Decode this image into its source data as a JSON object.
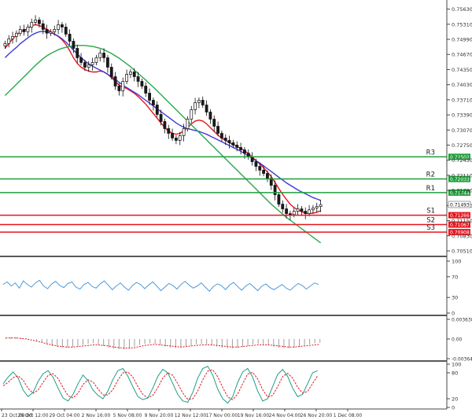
{
  "chart_data": [
    {
      "type": "candlestick",
      "panel": "price",
      "y_axis_ticks": [
        "0.75630",
        "0.75310",
        "0.74990",
        "0.74670",
        "0.74350",
        "0.74030",
        "0.73710",
        "0.73390",
        "0.73070",
        "0.72750",
        "0.72430",
        "0.72110",
        "0.71790",
        "0.71470",
        "0.71150",
        "0.70830",
        "0.70510"
      ],
      "ylim": [
        0.7046,
        0.7569
      ],
      "last_price": "0.71493",
      "close_series": [
        0.749,
        0.75,
        0.7505,
        0.7512,
        0.752,
        0.7515,
        0.7525,
        0.7535,
        0.754,
        0.7532,
        0.752,
        0.7512,
        0.7515,
        0.752,
        0.753,
        0.7525,
        0.751,
        0.7495,
        0.748,
        0.746,
        0.745,
        0.744,
        0.7445,
        0.745,
        0.746,
        0.747,
        0.746,
        0.744,
        0.742,
        0.74,
        0.739,
        0.741,
        0.7425,
        0.743,
        0.742,
        0.741,
        0.74,
        0.7385,
        0.737,
        0.736,
        0.734,
        0.7325,
        0.731,
        0.73,
        0.729,
        0.7285,
        0.7295,
        0.731,
        0.733,
        0.735,
        0.7365,
        0.737,
        0.736,
        0.7345,
        0.733,
        0.7315,
        0.73,
        0.729,
        0.7285,
        0.728,
        0.7275,
        0.727,
        0.7265,
        0.7258,
        0.725,
        0.724,
        0.723,
        0.7222,
        0.7215,
        0.7205,
        0.719,
        0.717,
        0.715,
        0.714,
        0.713,
        0.7128,
        0.7135,
        0.714,
        0.7135,
        0.713,
        0.7138,
        0.7142,
        0.7145,
        0.7149
      ],
      "moving_averages": [
        {
          "color": "#e8141c",
          "values": [
            0.748,
            0.749,
            0.75,
            0.7508,
            0.7515,
            0.7518,
            0.7522,
            0.7528,
            0.753,
            0.7528,
            0.7525,
            0.752,
            0.7515,
            0.751,
            0.7505,
            0.7498,
            0.7488,
            0.7475,
            0.746,
            0.7448,
            0.744,
            0.7435,
            0.7432,
            0.743,
            0.743,
            0.7432,
            0.743,
            0.7425,
            0.7418,
            0.741,
            0.7402,
            0.7398,
            0.7395,
            0.739,
            0.7385,
            0.7378,
            0.737,
            0.7362,
            0.7352,
            0.7342,
            0.7332,
            0.7322,
            0.7312,
            0.7305,
            0.73,
            0.7298,
            0.73,
            0.7305,
            0.7312,
            0.732,
            0.7326,
            0.7328,
            0.7326,
            0.732,
            0.7312,
            0.7304,
            0.7296,
            0.729,
            0.7285,
            0.728,
            0.7276,
            0.7272,
            0.7268,
            0.7263,
            0.7257,
            0.725,
            0.7242,
            0.7235,
            0.7227,
            0.7218,
            0.7208,
            0.7196,
            0.7183,
            0.7171,
            0.716,
            0.715,
            0.7143,
            0.7138,
            0.7134,
            0.7131,
            0.713,
            0.7131,
            0.7133,
            0.7136
          ]
        },
        {
          "color": "#3b3bd6",
          "values": [
            0.746,
            0.7468,
            0.7475,
            0.7482,
            0.749,
            0.7496,
            0.7502,
            0.7508,
            0.7512,
            0.7515,
            0.7516,
            0.7515,
            0.7513,
            0.751,
            0.7506,
            0.75,
            0.7493,
            0.7485,
            0.7476,
            0.7468,
            0.746,
            0.7453,
            0.7447,
            0.7442,
            0.7438,
            0.7434,
            0.743,
            0.7425,
            0.742,
            0.7414,
            0.7408,
            0.7402,
            0.7397,
            0.7392,
            0.7387,
            0.7382,
            0.7376,
            0.737,
            0.7364,
            0.7358,
            0.7352,
            0.7346,
            0.734,
            0.7334,
            0.7328,
            0.7322,
            0.7317,
            0.7313,
            0.731,
            0.7308,
            0.7306,
            0.7304,
            0.7301,
            0.7298,
            0.7294,
            0.729,
            0.7286,
            0.7282,
            0.7278,
            0.7274,
            0.727,
            0.7266,
            0.7262,
            0.7257,
            0.7252,
            0.7247,
            0.7242,
            0.7237,
            0.7231,
            0.7225,
            0.7219,
            0.7213,
            0.7207,
            0.7201,
            0.7195,
            0.719,
            0.7185,
            0.718,
            0.7176,
            0.7172,
            0.7168,
            0.7164,
            0.7161,
            0.7158
          ]
        },
        {
          "color": "#2aa84a",
          "values": [
            0.738,
            0.7388,
            0.7396,
            0.7404,
            0.7412,
            0.742,
            0.7428,
            0.7436,
            0.7444,
            0.7451,
            0.7458,
            0.7464,
            0.7469,
            0.7473,
            0.7477,
            0.748,
            0.7482,
            0.7484,
            0.7485,
            0.7486,
            0.7486,
            0.7486,
            0.7485,
            0.7484,
            0.7482,
            0.748,
            0.7477,
            0.7473,
            0.7469,
            0.7464,
            0.7459,
            0.7453,
            0.7447,
            0.7441,
            0.7434,
            0.7427,
            0.742,
            0.7413,
            0.7405,
            0.7398,
            0.739,
            0.7382,
            0.7374,
            0.7366,
            0.7358,
            0.735,
            0.7342,
            0.7334,
            0.7326,
            0.7318,
            0.731,
            0.7302,
            0.7294,
            0.7286,
            0.7278,
            0.727,
            0.7262,
            0.7254,
            0.7246,
            0.7238,
            0.723,
            0.7222,
            0.7214,
            0.7206,
            0.7198,
            0.719,
            0.7182,
            0.7174,
            0.7166,
            0.7158,
            0.715,
            0.7143,
            0.7136,
            0.7129,
            0.7122,
            0.7116,
            0.711,
            0.7104,
            0.7098,
            0.7092,
            0.7086,
            0.708,
            0.7074,
            0.7068
          ]
        }
      ],
      "levels": [
        {
          "label": "R3",
          "value": "0.72502",
          "color": "#1e9e3a"
        },
        {
          "label": "",
          "value": "0.72033",
          "color": "#1e9e3a"
        },
        {
          "label": "R2",
          "value": "",
          "color": "#1e9e3a"
        },
        {
          "label": "",
          "value": "0.71744",
          "color": "#1e9e3a"
        },
        {
          "label": "R1",
          "value": "",
          "color": "#1e9e3a"
        },
        {
          "label": "",
          "value": "0.71266",
          "color": "#e8141c"
        },
        {
          "label": "S1",
          "value": "",
          "color": "#e8141c"
        },
        {
          "label": "",
          "value": "0.71067",
          "color": "#e8141c"
        },
        {
          "label": "S2",
          "value": "",
          "color": "#e8141c"
        },
        {
          "label": "",
          "value": "0.70908",
          "color": "#e8141c"
        },
        {
          "label": "S3",
          "value": "",
          "color": "#e8141c"
        }
      ]
    },
    {
      "type": "line",
      "panel": "rsi",
      "y_axis_ticks": [
        "100",
        "70",
        "30",
        "0"
      ],
      "ylim": [
        0,
        100
      ],
      "color": "#3a8fd8",
      "values": [
        55,
        60,
        52,
        58,
        48,
        62,
        55,
        50,
        58,
        63,
        52,
        47,
        56,
        61,
        53,
        49,
        57,
        60,
        50,
        46,
        55,
        59,
        51,
        48,
        56,
        62,
        54,
        45,
        52,
        58,
        50,
        44,
        53,
        59,
        55,
        47,
        54,
        60,
        52,
        43,
        50,
        57,
        53,
        46,
        55,
        61,
        54,
        48,
        52,
        58,
        50,
        42,
        51,
        56,
        53,
        45,
        54,
        59,
        51,
        44,
        52,
        57,
        50,
        43,
        52,
        56,
        49,
        45,
        50,
        55,
        48,
        44,
        51,
        57,
        53,
        46,
        52,
        58,
        55
      ]
    },
    {
      "type": "bar",
      "panel": "macd",
      "y_axis_ticks": [
        "0.003638",
        "0.00",
        "-0.003646"
      ],
      "ylim": [
        -0.003646,
        0.003638
      ],
      "bar_color": "#9e9e9e",
      "signal_color": "#e8141c",
      "values": [
        0.0002,
        0.0003,
        0.0003,
        0.0002,
        0.0001,
        0.0,
        -0.0003,
        -0.0006,
        -0.001,
        -0.0013,
        -0.0015,
        -0.0016,
        -0.0016,
        -0.0015,
        -0.0013,
        -0.0011,
        -0.0009,
        -0.0008,
        -0.001,
        -0.0013,
        -0.0016,
        -0.0018,
        -0.0019,
        -0.0019,
        -0.0017,
        -0.0014,
        -0.0011,
        -0.0009,
        -0.0008,
        -0.0009,
        -0.0011,
        -0.0014,
        -0.0016,
        -0.0017,
        -0.0016,
        -0.0014,
        -0.0012,
        -0.001,
        -0.0009,
        -0.001,
        -0.0012,
        -0.0014,
        -0.0016,
        -0.0017,
        -0.0017,
        -0.0016,
        -0.0014,
        -0.0012,
        -0.001,
        -0.0009,
        -0.001,
        -0.0012,
        -0.0014,
        -0.0016,
        -0.0017,
        -0.0017,
        -0.0016,
        -0.0014,
        -0.0012,
        -0.001,
        -0.0008,
        -0.0007
      ],
      "signal": [
        0.0002,
        0.0002,
        0.0002,
        0.0001,
        0.0,
        -0.0002,
        -0.0004,
        -0.0006,
        -0.0009,
        -0.0011,
        -0.0013,
        -0.0014,
        -0.0015,
        -0.0015,
        -0.0014,
        -0.0013,
        -0.0012,
        -0.0011,
        -0.0011,
        -0.0012,
        -0.0013,
        -0.0015,
        -0.0016,
        -0.0017,
        -0.0017,
        -0.0016,
        -0.0014,
        -0.0012,
        -0.0011,
        -0.001,
        -0.0011,
        -0.0012,
        -0.0013,
        -0.0014,
        -0.0015,
        -0.0014,
        -0.0013,
        -0.0012,
        -0.0011,
        -0.0011,
        -0.0011,
        -0.0012,
        -0.0013,
        -0.0014,
        -0.0015,
        -0.0015,
        -0.0014,
        -0.0013,
        -0.0012,
        -0.0011,
        -0.0011,
        -0.0011,
        -0.0012,
        -0.0013,
        -0.0014,
        -0.0015,
        -0.0015,
        -0.0014,
        -0.0013,
        -0.0012,
        -0.0011,
        -0.001
      ]
    },
    {
      "type": "line",
      "panel": "stochastic",
      "y_axis_ticks": [
        "100",
        "80",
        "20",
        "0"
      ],
      "ylim": [
        0,
        100
      ],
      "k_color": "#1e9e8a",
      "d_color": "#e8141c",
      "k": [
        55,
        70,
        82,
        68,
        40,
        25,
        35,
        60,
        78,
        85,
        70,
        45,
        22,
        15,
        30,
        55,
        75,
        62,
        40,
        28,
        20,
        38,
        65,
        85,
        90,
        72,
        48,
        25,
        18,
        22,
        45,
        72,
        88,
        80,
        55,
        30,
        15,
        12,
        35,
        68,
        90,
        95,
        75,
        42,
        20,
        10,
        25,
        58,
        82,
        90,
        70,
        38,
        15,
        20,
        48,
        76,
        88,
        72,
        45,
        25,
        30,
        55,
        80,
        85
      ],
      "d": [
        50,
        58,
        69,
        73,
        63,
        44,
        33,
        40,
        58,
        74,
        78,
        67,
        46,
        27,
        22,
        33,
        53,
        64,
        59,
        43,
        29,
        29,
        41,
        63,
        80,
        82,
        70,
        48,
        30,
        22,
        28,
        46,
        68,
        80,
        74,
        55,
        33,
        19,
        20,
        38,
        64,
        84,
        87,
        71,
        46,
        24,
        18,
        31,
        55,
        77,
        81,
        66,
        41,
        24,
        28,
        48,
        71,
        79,
        68,
        47,
        33,
        37,
        55,
        73
      ]
    }
  ],
  "x_axis": [
    "23 Oct 00:00",
    "26 Oct 12:00",
    "29 Oct 04:00",
    "2 Nov 16:00",
    "5 Nov 08:00",
    "9 Nov 20:00",
    "12 Nov 12:00",
    "17 Nov 00:00",
    "19 Nov 16:00",
    "24 Nov 04:00",
    "26 Nov 20:00",
    "1 Dec 08:00"
  ],
  "colors": {
    "bull_candle": "#ffffff",
    "bear_candle": "#1a1a1a",
    "axis_text": "#333333",
    "price_tag_bg": "#ffffff"
  }
}
